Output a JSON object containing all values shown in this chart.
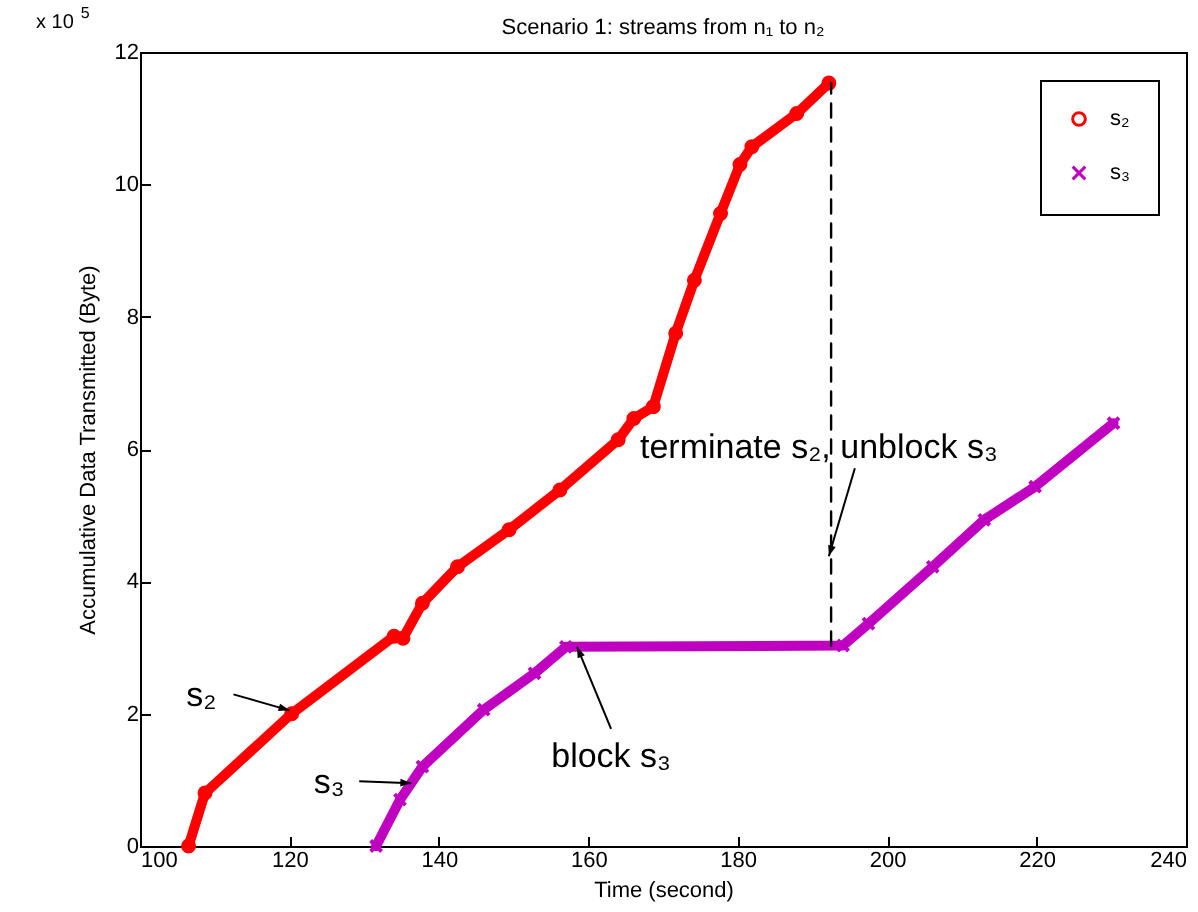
{
  "chart_data": {
    "type": "line",
    "title": "Scenario 1: streams from n₁ to n₂",
    "xlabel": "Time (second)",
    "ylabel": "Accumulative Data Transmitted (Byte)",
    "xlim": [
      100,
      240
    ],
    "xticks": [
      100,
      120,
      140,
      160,
      180,
      200,
      220,
      240
    ],
    "ylim": [
      0,
      12
    ],
    "yticks": [
      0,
      2,
      4,
      6,
      8,
      10,
      12
    ],
    "grid": false,
    "legend": "top right",
    "series": [
      {
        "name": "s₂",
        "color": "#ff0000",
        "marker": "circle",
        "x": [
          106.5,
          108.7,
          120.3,
          134,
          135.2,
          137.8,
          142.5,
          149.4,
          156.2,
          164,
          166.1,
          168.7,
          171.7,
          174.2,
          177.7,
          180.3,
          181.9,
          187.9,
          192.2
        ],
        "values": [
          0,
          0.8,
          2.0,
          3.17,
          3.14,
          3.67,
          4.22,
          4.78,
          5.38,
          6.14,
          6.46,
          6.64,
          7.75,
          8.55,
          9.56,
          10.3,
          10.57,
          11.07,
          11.53
        ]
      },
      {
        "name": "s₃",
        "color": "#c000c0",
        "marker": "cross",
        "x": [
          131.6,
          134.8,
          137.8,
          146,
          152.8,
          157,
          194.1,
          197.5,
          206.1,
          213,
          219.8,
          230.3
        ],
        "values": [
          0,
          0.7,
          1.2,
          2.06,
          2.61,
          3.01,
          3.03,
          3.36,
          4.22,
          4.93,
          5.43,
          6.39
        ]
      },
      {
        "color": "#000000",
        "line_style": "dashed",
        "marker": "none",
        "x": [
          192.5,
          192.5
        ],
        "values": [
          3.03,
          11.53
        ]
      }
    ],
    "annotations": [
      "x 10$^{5}$",
      {
        "text": "s₂",
        "x": 120,
        "y": 2.05
      },
      {
        "text": "s₃",
        "x": 136.3,
        "y": 0.95
      },
      {
        "text": "block s₃",
        "x": 158.5,
        "y": 3.01
      },
      {
        "text": "terminate s₂, unblock s₃",
        "x": 192.2,
        "y": 4.38
      }
    ]
  }
}
